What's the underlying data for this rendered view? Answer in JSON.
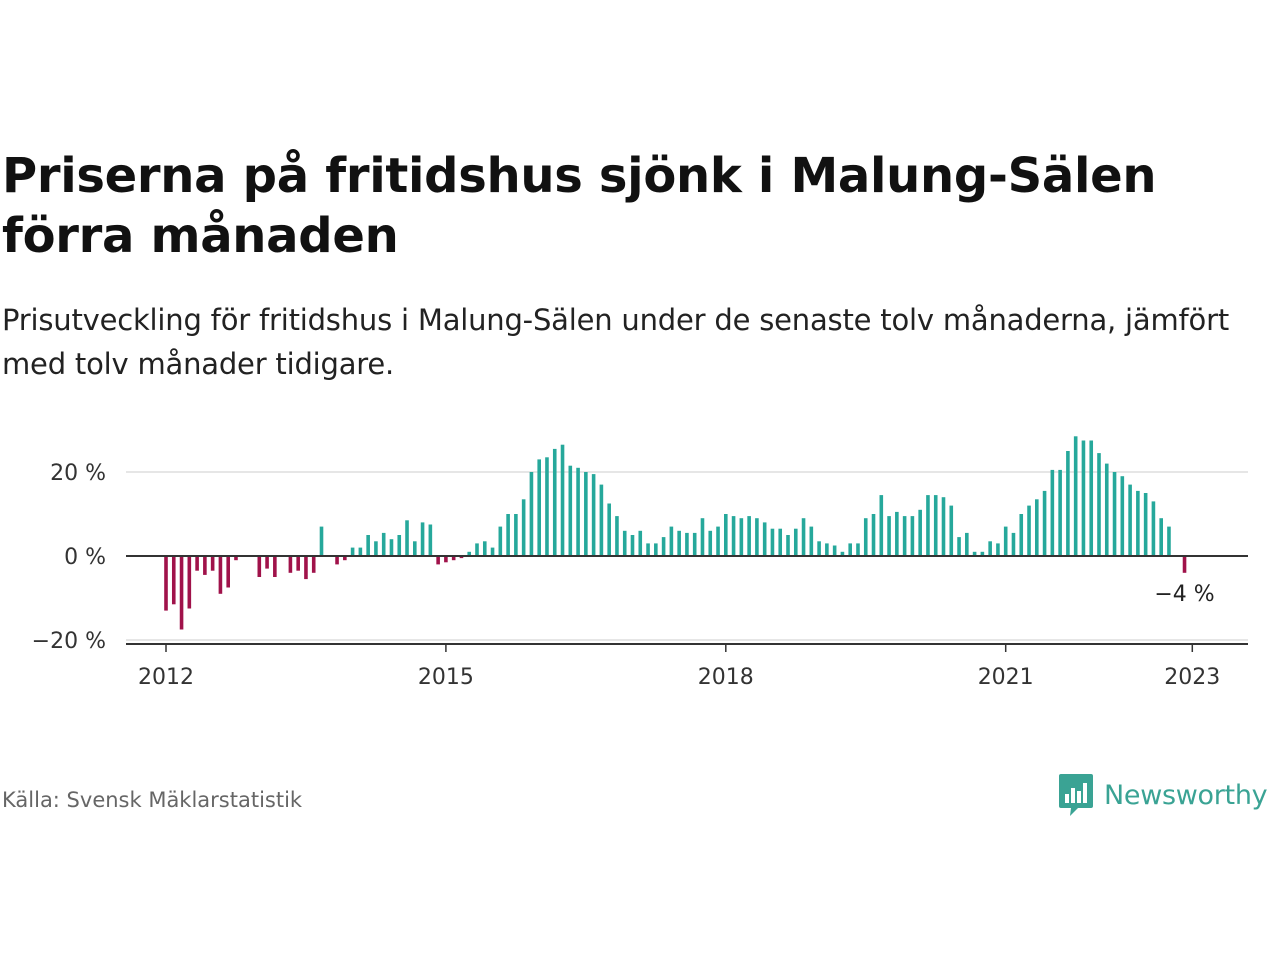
{
  "header": {
    "title": "Priserna på fritidshus sjönk i Malung-Sälen förra månaden",
    "subtitle": "Prisutveckling för fritidshus i Malung-Sälen under de senaste tolv månaderna, jämfört med tolv månader tidigare."
  },
  "footer": {
    "source": "Källa: Svensk Mäklarstatistik",
    "brand": "Newsworthy"
  },
  "colors": {
    "positive": "#26a89b",
    "negative": "#a0124a",
    "grid": "#dddddd",
    "zero_line": "#333333",
    "brand": "#3aa394"
  },
  "chart_data": {
    "type": "bar",
    "x_start": "2012-01",
    "x_end": "2022-12",
    "ylim": [
      -20,
      30
    ],
    "yticks": [
      {
        "value": 20,
        "label": "20 %"
      },
      {
        "value": 0,
        "label": "0 %"
      },
      {
        "value": -20,
        "label": "−20 %"
      }
    ],
    "xticks": [
      "2012",
      "2015",
      "2018",
      "2021",
      "2023"
    ],
    "values": [
      -13,
      -11.5,
      -17.5,
      -12.5,
      -3.5,
      -4.5,
      -3.5,
      -9,
      -7.5,
      -1,
      0,
      0,
      -5,
      -3,
      -5,
      0,
      -4,
      -3.5,
      -5.5,
      -4,
      7,
      0,
      -2,
      -1,
      2,
      2,
      5,
      3.5,
      5.5,
      4,
      5,
      8.5,
      3.5,
      8,
      7.5,
      -2,
      -1.5,
      -1,
      -0.5,
      1,
      3,
      3.5,
      2,
      7,
      10,
      10,
      13.5,
      20,
      23,
      23.5,
      25.5,
      26.5,
      21.5,
      21,
      20,
      19.5,
      17,
      12.5,
      9.5,
      6,
      5,
      6,
      3,
      3,
      4.5,
      7,
      6,
      5.5,
      5.5,
      9,
      6,
      7,
      10,
      9.5,
      9,
      9.5,
      9,
      8,
      6.5,
      6.5,
      5,
      6.5,
      9,
      7,
      3.5,
      3,
      2.5,
      1,
      3,
      3,
      9,
      10,
      14.5,
      9.5,
      10.5,
      9.5,
      9.5,
      11,
      14.5,
      14.5,
      14,
      12,
      4.5,
      5.5,
      1,
      1,
      3.5,
      3,
      7,
      5.5,
      10,
      12,
      13.5,
      15.5,
      20.5,
      20.5,
      25,
      28.5,
      27.5,
      27.5,
      24.5,
      22,
      20,
      19,
      17,
      15.5,
      15,
      13,
      9,
      7,
      0,
      -4
    ],
    "annotation": {
      "label": "−4 %",
      "value": -4
    }
  }
}
